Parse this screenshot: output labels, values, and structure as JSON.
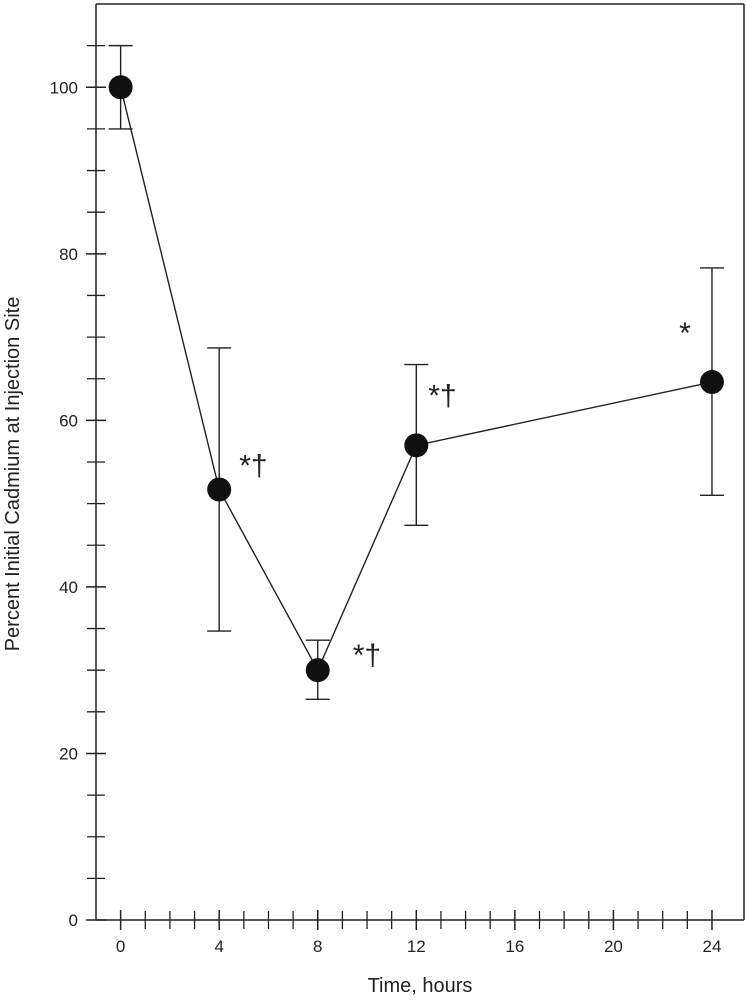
{
  "chart_data": {
    "type": "line",
    "title": "",
    "xlabel": "Time, hours",
    "ylabel": "Percent Initial Cadmium at Injection Site",
    "xlim": [
      -1,
      25.3
    ],
    "ylim": [
      0,
      110
    ],
    "x_major_ticks": [
      0,
      4,
      8,
      12,
      16,
      20,
      24
    ],
    "x_minor_ticks": [
      1,
      2,
      3,
      5,
      6,
      7,
      9,
      10,
      11,
      13,
      14,
      15,
      17,
      18,
      19,
      21,
      22,
      23
    ],
    "y_major_ticks": [
      0,
      20,
      40,
      60,
      80,
      100
    ],
    "y_minor_ticks": [
      5,
      10,
      15,
      25,
      30,
      35,
      45,
      50,
      55,
      65,
      70,
      75,
      85,
      90,
      95,
      105
    ],
    "grid": false,
    "legend": "none",
    "series": [
      {
        "x": [
          0,
          4,
          8,
          12,
          24
        ],
        "y": [
          100,
          51.7,
          30,
          57,
          64.6
        ],
        "error_low": [
          95,
          34.7,
          26.5,
          47.4,
          51
        ],
        "error_high": [
          105,
          68.7,
          33.6,
          66.7,
          78.3
        ],
        "annotations": [
          "",
          "*†",
          "*†",
          "*†",
          "*"
        ],
        "color": "#111111"
      }
    ]
  }
}
